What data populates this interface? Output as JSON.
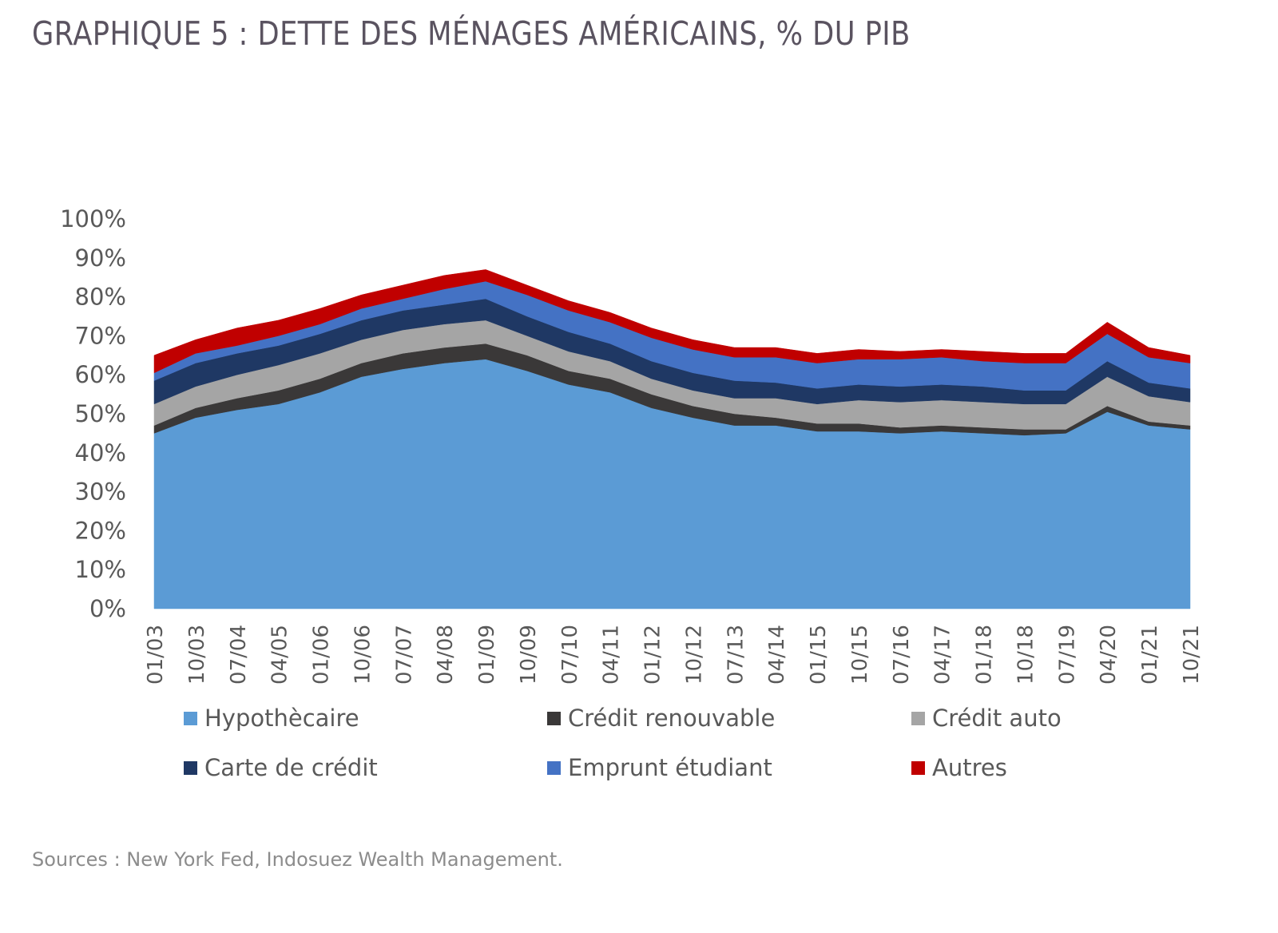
{
  "title": "GRAPHIQUE 5 : DETTE DES MÉNAGES AMÉRICAINS, % DU PIB",
  "source": "Sources : New York Fed, Indosuez Wealth Management.",
  "chart_data": {
    "type": "area",
    "stacked": true,
    "title": "GRAPHIQUE 5 : DETTE DES MÉNAGES AMÉRICAINS, % DU PIB",
    "xlabel": "",
    "ylabel": "",
    "ylim": [
      0,
      100
    ],
    "y_ticks": [
      "0%",
      "10%",
      "20%",
      "30%",
      "40%",
      "50%",
      "60%",
      "70%",
      "80%",
      "90%",
      "100%"
    ],
    "x_tick_labels": [
      "01/03",
      "10/03",
      "07/04",
      "04/05",
      "01/06",
      "10/06",
      "07/07",
      "04/08",
      "01/09",
      "10/09",
      "07/10",
      "04/11",
      "01/12",
      "10/12",
      "07/13",
      "04/14",
      "01/15",
      "10/15",
      "07/16",
      "04/17",
      "01/18",
      "10/18",
      "07/19",
      "04/20",
      "01/21",
      "10/21"
    ],
    "grid": false,
    "legend_position": "bottom",
    "x": [
      "01/03",
      "10/03",
      "07/04",
      "04/05",
      "01/06",
      "10/06",
      "07/07",
      "04/08",
      "01/09",
      "10/09",
      "07/10",
      "04/11",
      "01/12",
      "10/12",
      "07/13",
      "04/14",
      "01/15",
      "10/15",
      "07/16",
      "04/17",
      "01/18",
      "10/18",
      "07/19",
      "04/20",
      "01/21",
      "10/21"
    ],
    "series": [
      {
        "name": "Hypothècaire",
        "color": "#5b9bd5",
        "values": [
          45,
          49,
          51,
          52.5,
          55.5,
          59.5,
          61.5,
          63,
          64,
          61,
          57.5,
          55.5,
          51.5,
          49,
          47,
          47,
          45.5,
          45.5,
          45,
          45.5,
          45,
          44.5,
          45,
          50.5,
          47,
          46
        ]
      },
      {
        "name": "Crédit renouvable",
        "color": "#3a3838",
        "values": [
          2,
          2.5,
          3,
          3.5,
          3.5,
          3.5,
          4,
          4,
          4,
          4,
          3.5,
          3.5,
          3.5,
          3,
          3,
          2,
          2,
          2,
          1.5,
          1.5,
          1.5,
          1.5,
          1,
          1.5,
          1,
          1
        ]
      },
      {
        "name": "Crédit auto",
        "color": "#a5a5a5",
        "values": [
          5.5,
          5.5,
          6,
          6.5,
          6.5,
          6,
          6,
          6,
          6,
          5,
          5,
          4.5,
          4,
          4,
          4,
          5,
          5,
          6,
          6.5,
          6.5,
          6.5,
          6.5,
          6.5,
          7.5,
          6.5,
          6
        ]
      },
      {
        "name": "Carte de crédit",
        "color": "#1f3864",
        "values": [
          6,
          6,
          5.5,
          5,
          5,
          5,
          5,
          5,
          5.5,
          5,
          5,
          4.5,
          4.5,
          4.5,
          4.5,
          4,
          4,
          4,
          4,
          4,
          4,
          3.5,
          3.5,
          4,
          3.5,
          3.5
        ]
      },
      {
        "name": "Emprunt étudiant",
        "color": "#4472c4",
        "values": [
          2,
          2.5,
          2,
          2.5,
          2.5,
          3,
          3,
          4,
          4.5,
          5.5,
          5.5,
          5.5,
          6,
          6,
          6,
          6.5,
          6.5,
          6.5,
          7,
          7,
          6.5,
          7,
          7,
          7,
          6.5,
          6.5
        ]
      },
      {
        "name": "Autres",
        "color": "#c00000",
        "values": [
          4.5,
          3.5,
          4.5,
          4,
          4,
          3.5,
          3.5,
          3.5,
          3,
          2.5,
          2.5,
          2.5,
          2.5,
          2.5,
          2.5,
          2.5,
          2.5,
          2.5,
          2,
          2,
          2.5,
          2.5,
          2.5,
          3,
          2.5,
          2
        ]
      }
    ]
  },
  "legend": [
    {
      "label": "Hypothècaire",
      "color": "#5b9bd5"
    },
    {
      "label": "Crédit renouvable",
      "color": "#3a3838"
    },
    {
      "label": "Crédit auto",
      "color": "#a5a5a5"
    },
    {
      "label": "Carte de crédit",
      "color": "#1f3864"
    },
    {
      "label": "Emprunt étudiant",
      "color": "#4472c4"
    },
    {
      "label": "Autres",
      "color": "#c00000"
    }
  ]
}
